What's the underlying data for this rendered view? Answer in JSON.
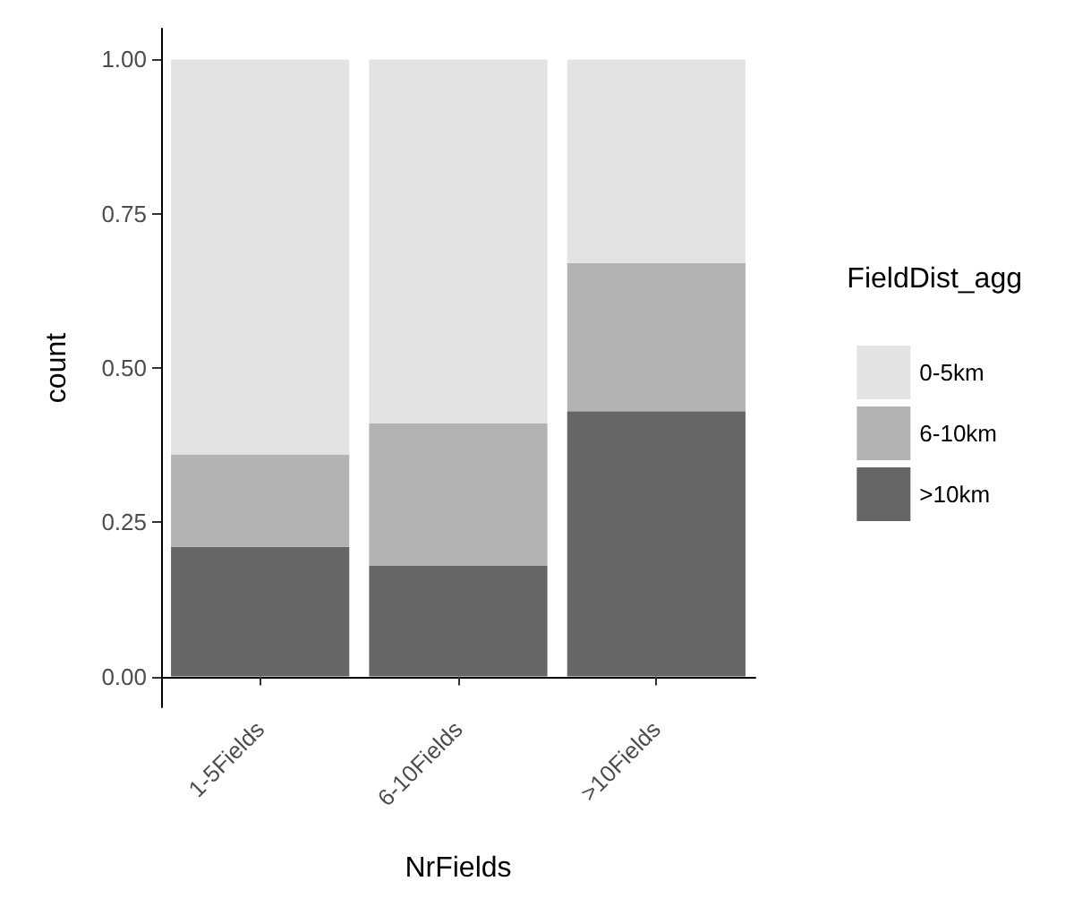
{
  "chart_data": {
    "type": "bar",
    "stacked": true,
    "xlabel": "NrFields",
    "ylabel": "count",
    "legend_title": "FieldDist_agg",
    "legend": "right",
    "categories": [
      "1-5Fields",
      "6-10Fields",
      ">10Fields"
    ],
    "series": [
      {
        "name": ">10km",
        "color": "#666666",
        "values": [
          0.21,
          0.18,
          0.43
        ]
      },
      {
        "name": "6-10km",
        "color": "#b3b3b3",
        "values": [
          0.15,
          0.23,
          0.24
        ]
      },
      {
        "name": "0-5km",
        "color": "#e3e3e3",
        "values": [
          0.64,
          0.59,
          0.33
        ]
      }
    ],
    "ylim": [
      -0.05,
      1.05
    ],
    "yticks": [
      {
        "value": 0,
        "label": "0.00"
      },
      {
        "value": 0.25,
        "label": "0.25"
      },
      {
        "value": 0.5,
        "label": "0.50"
      },
      {
        "value": 0.75,
        "label": "0.75"
      },
      {
        "value": 1,
        "label": "1.00"
      }
    ],
    "grid": false
  }
}
